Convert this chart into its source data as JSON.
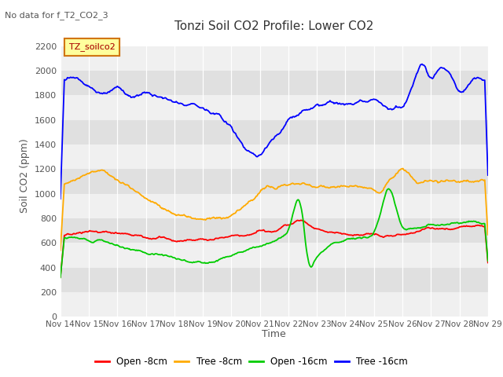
{
  "title": "Tonzi Soil CO2 Profile: Lower CO2",
  "subtitle": "No data for f_T2_CO2_3",
  "ylabel": "Soil CO2 (ppm)",
  "xlabel": "Time",
  "ylim": [
    0,
    2300
  ],
  "yticks": [
    0,
    200,
    400,
    600,
    800,
    1000,
    1200,
    1400,
    1600,
    1800,
    2000,
    2200
  ],
  "legend_label": "TZ_soilco2",
  "legend_entries": [
    "Open -8cm",
    "Tree -8cm",
    "Open -16cm",
    "Tree -16cm"
  ],
  "legend_colors": [
    "#ff0000",
    "#ffaa00",
    "#00cc00",
    "#0000ff"
  ],
  "band_colors": [
    "#f0f0f0",
    "#e0e0e0"
  ],
  "xticklabels": [
    "Nov 14",
    "Nov 15",
    "Nov 16",
    "Nov 17",
    "Nov 18",
    "Nov 19",
    "Nov 20",
    "Nov 21",
    "Nov 22",
    "Nov 23",
    "Nov 24",
    "Nov 25",
    "Nov 26",
    "Nov 27",
    "Nov 28",
    "Nov 29"
  ],
  "n_days": 15
}
